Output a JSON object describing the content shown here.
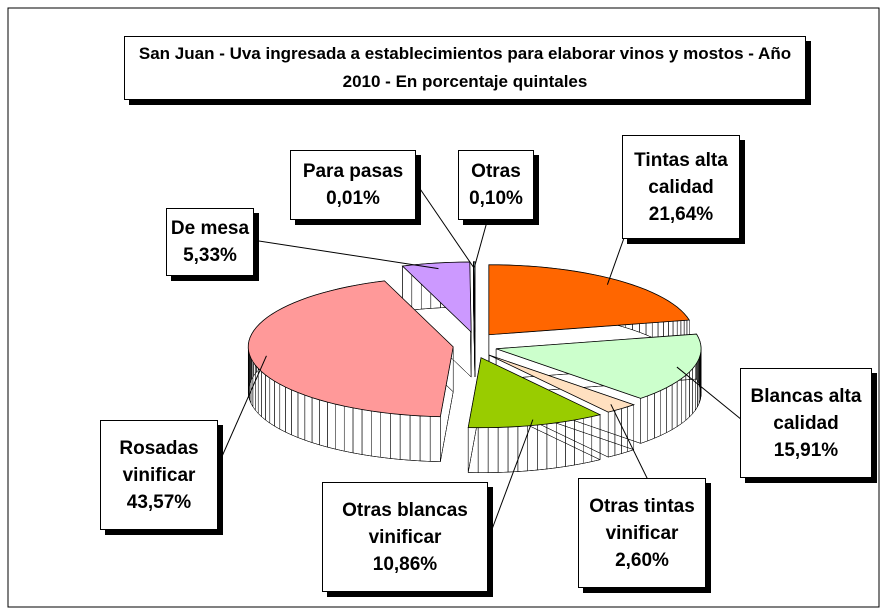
{
  "chart_data": {
    "type": "pie3d",
    "title": "San Juan - Uva ingresada a establecimientos para elaborar vinos y mostos - Año 2010 - En porcentaje quintales",
    "categories": [
      "Tintas alta calidad",
      "Blancas alta calidad",
      "Otras tintas vinificar",
      "Otras blancas vinificar",
      "Rosadas vinificar",
      "De mesa",
      "Para pasas",
      "Otras"
    ],
    "values": [
      21.64,
      15.91,
      2.6,
      10.86,
      43.57,
      5.33,
      0.01,
      0.1
    ],
    "value_labels": [
      "21,64%",
      "15,91%",
      "2,60%",
      "10,86%",
      "43,57%",
      "5,33%",
      "0,01%",
      "0,10%"
    ],
    "colors": [
      "#ff6600",
      "#ccffcc",
      "#ffe0c0",
      "#99cc00",
      "#ff9999",
      "#cc99ff",
      "#ffffcc",
      "#ccffff"
    ]
  }
}
